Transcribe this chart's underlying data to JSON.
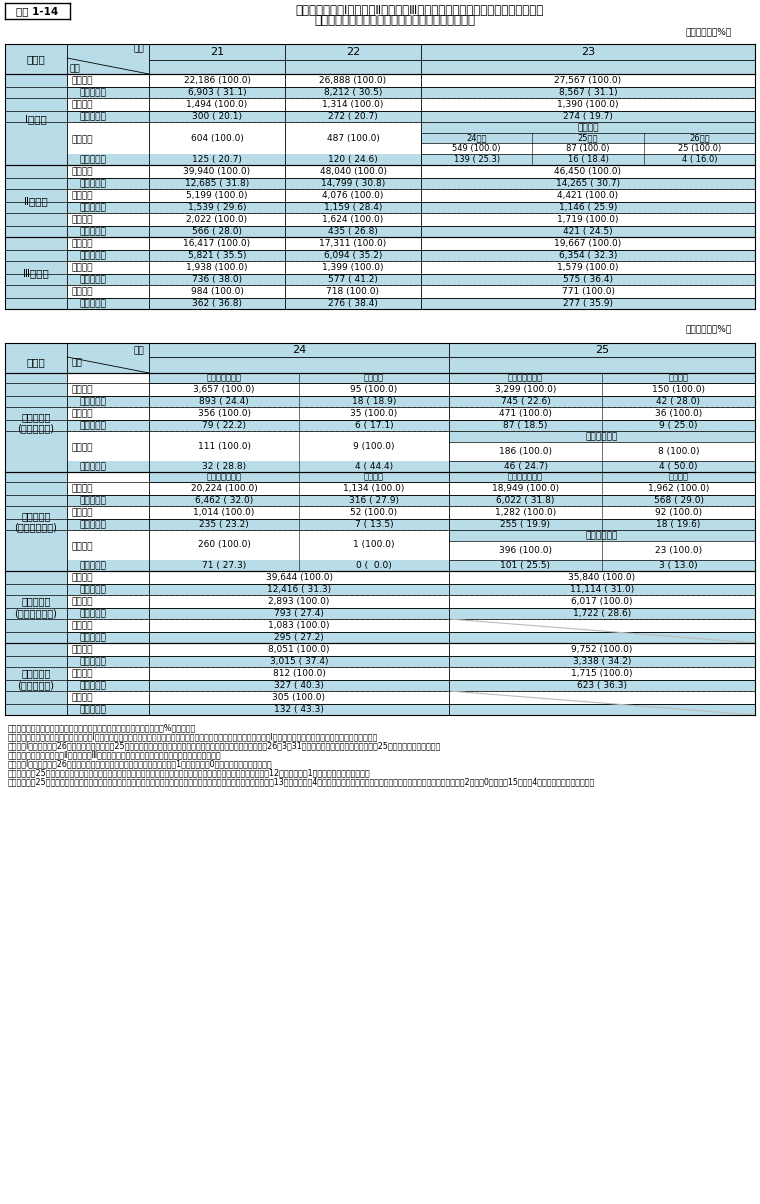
{
  "title_box": "資料 1-14",
  "title_line1": "国家公務員採用Ⅰ種試験・Ⅱ種試験・Ⅲ種試験及び国家公務員採用総合職試験・",
  "title_line2": "一般職試験の申込者数・合格者数・採用者数の推移",
  "unit": "（単位：人、%）",
  "bg": "#b8dce8",
  "white": "#ffffff",
  "black": "#000000",
  "dash": "#999999",
  "notes": [
    "（注）１　（　）内は、申込者数、合格者数及び採用者数に対する割合（%）を示す。",
    "　　２　総合職、一般職（大卒程度）、Ⅰ種試験の採用者数は、試験実施年度の翌年度における採用者数である（総合職及びⅠ種試験は過年度名簿等からの採用者を含む。）。",
    "　　３　Ⅰ種試験の平成26年度採用者数及び平成25年度総合職試験、一般職試験（大卒程度）の採用内定者数は、平成26年3月31日現在の採用内定者数であり、平成25年度内の採用者を含む。",
    "　　４　一般職（高卒）、Ⅱ種試験及びⅢ種試験の採用者数は、名簿有効期間満了時の人数である。",
    "　　５　Ⅰ種試験の平成26年度採用者数は、上記のほか、防衛省（特別職）で1人（うち女性0人）の採用内定者がいる。",
    "　　６　平成25年度総合職試験（院卒者試験）（法務区分を除く）の採用内定者数は、上記のほか、防衛省（特別職）で12人（うち女性1人）の採用内定者がいる。",
    "　　７　平成25年度総合職試験（大卒程度試験）（教養区分を除く）の採用内定者数は、上記のほか、防衛省（特別職）で13人（うち女性4人）、また、教養区分においては、上記のほか、防衛省（特別職）で2人（同0人）、計15人（同4人）の採用内定者がいる。"
  ]
}
